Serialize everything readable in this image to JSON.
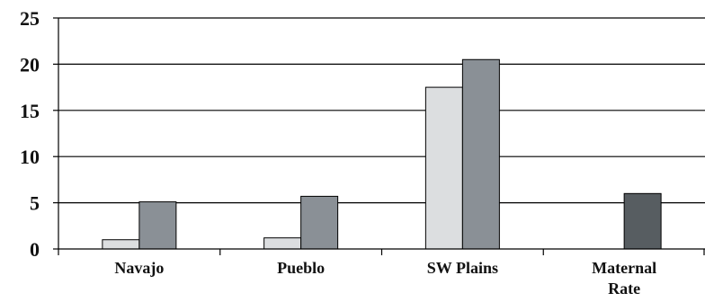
{
  "chart_data": {
    "type": "bar",
    "categories": [
      [
        "Navajo"
      ],
      [
        "Pueblo"
      ],
      [
        "SW Plains"
      ],
      [
        "Maternal",
        "Rate"
      ]
    ],
    "series": [
      {
        "values": [
          1.0,
          1.2,
          17.5,
          null
        ],
        "color": "#dcdee0"
      },
      {
        "values": [
          5.1,
          5.7,
          20.5,
          null
        ],
        "color": "#8a9096"
      },
      {
        "values": [
          null,
          null,
          null,
          6.0
        ],
        "color": "#575d61"
      }
    ],
    "ylim": [
      0,
      25
    ],
    "yticks": [
      0,
      5,
      10,
      15,
      20,
      25
    ],
    "grid": true,
    "xlabel": "",
    "ylabel": "",
    "title": ""
  }
}
